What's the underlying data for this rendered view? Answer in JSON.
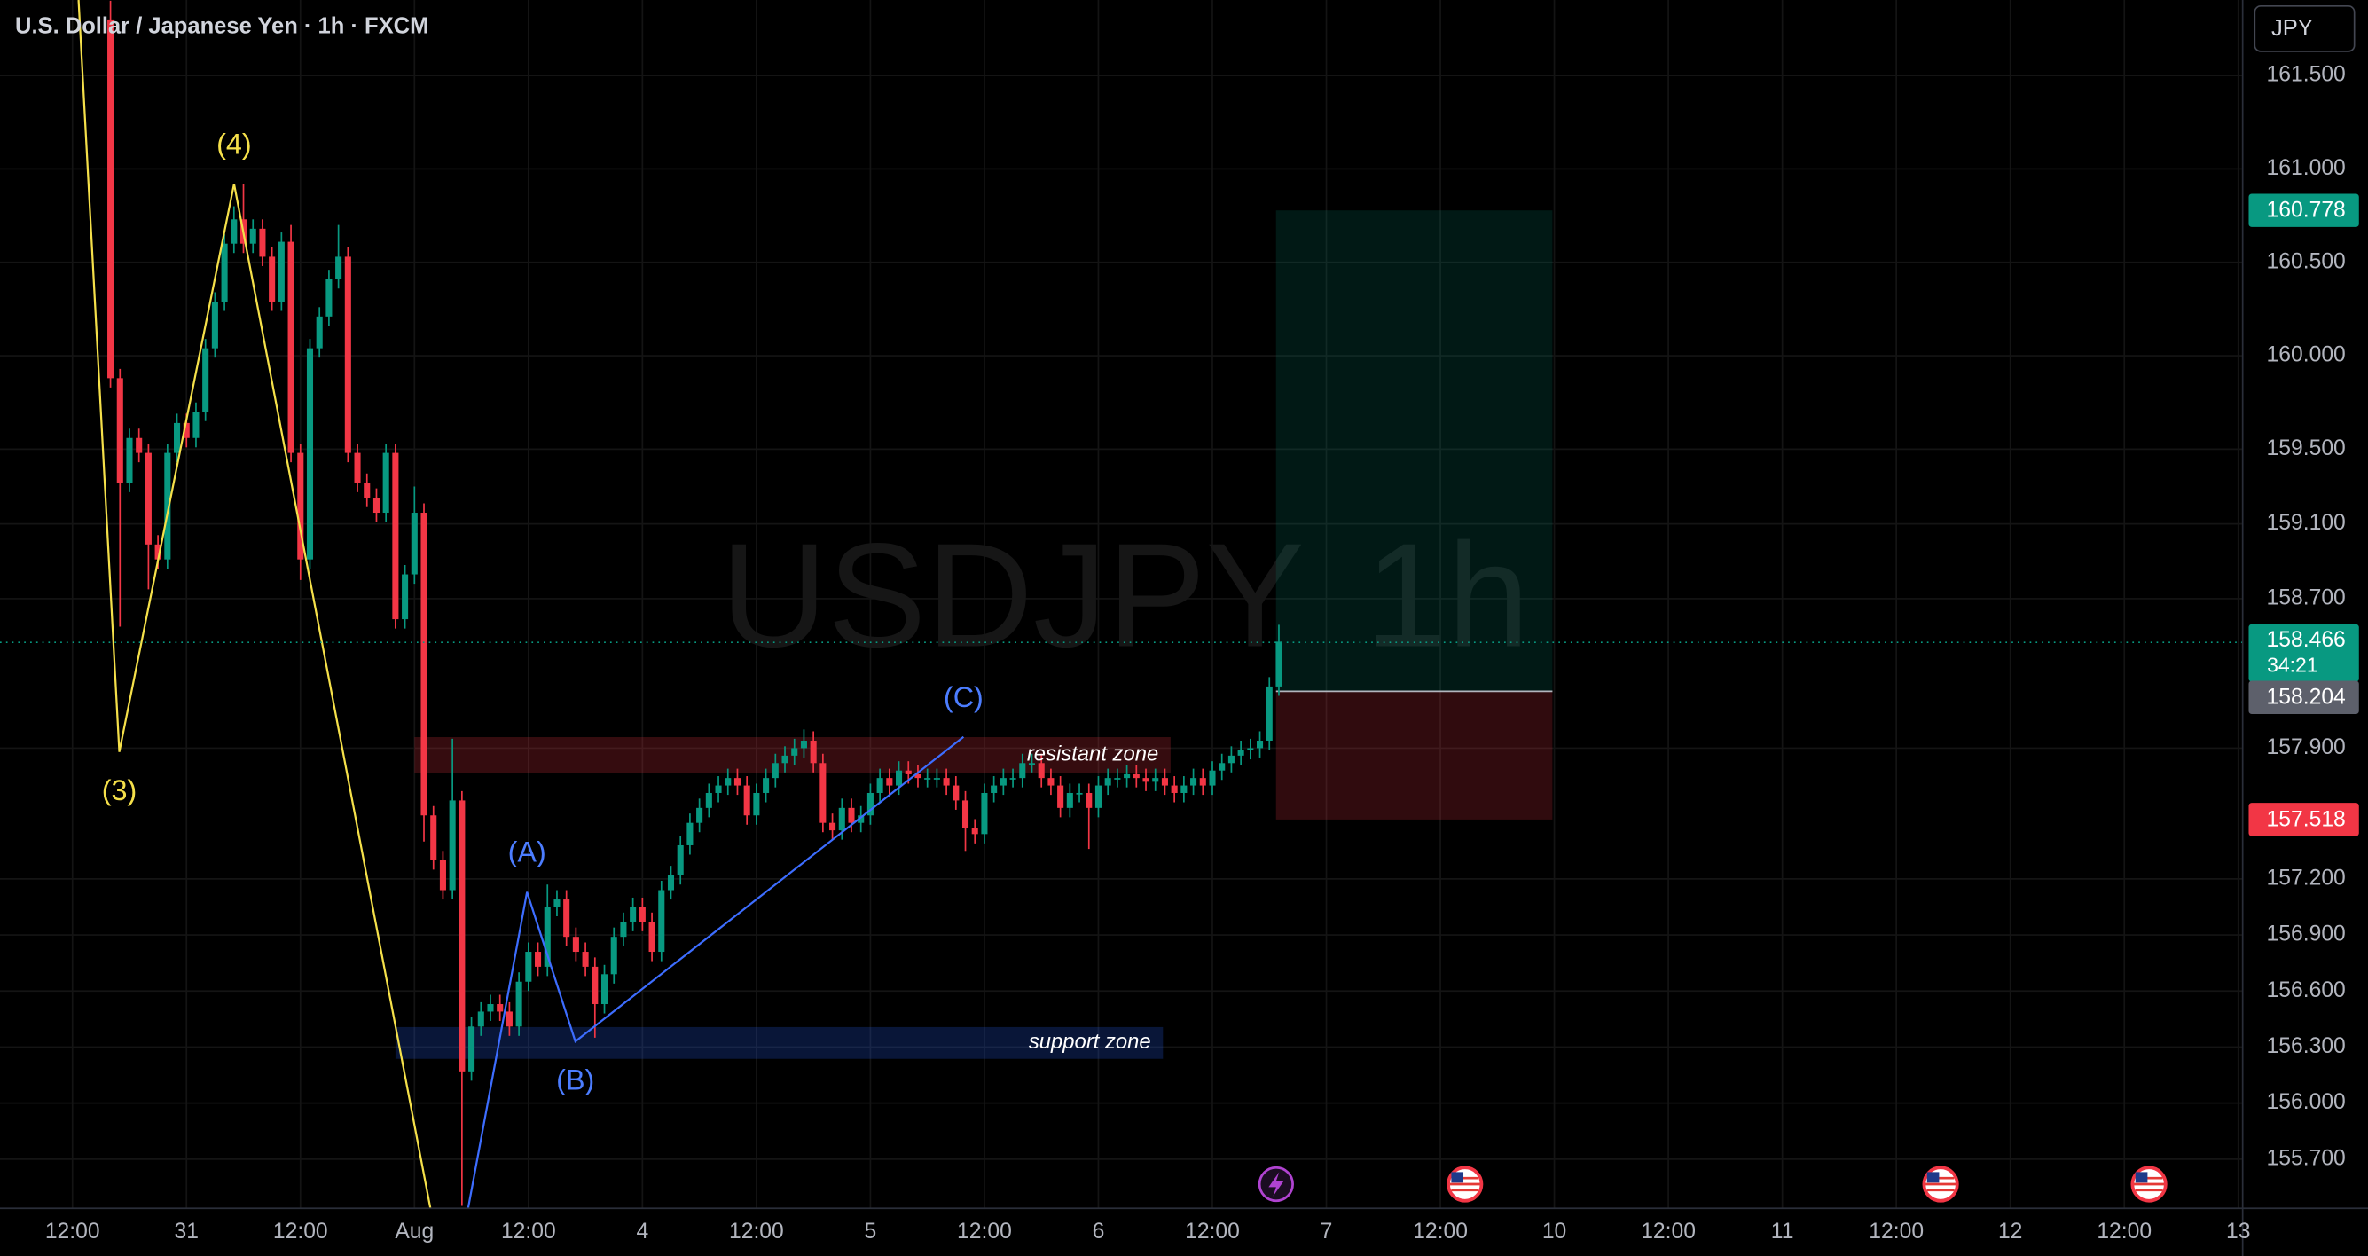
{
  "chart_data": {
    "type": "candlestick",
    "title": "U.S. Dollar / Japanese Yen · 1h · FXCM",
    "currency_button": "JPY",
    "watermark": {
      "symbol": "USDJPY",
      "interval": "1h"
    },
    "up_color": "#089981",
    "down_color": "#f23645",
    "grid": true,
    "xlim": [
      4.37,
      240.46
    ],
    "ylim": [
      155.437,
      161.904
    ],
    "xticks": [
      {
        "value": 12,
        "label": "12:00"
      },
      {
        "value": 24,
        "label": "31"
      },
      {
        "value": 36,
        "label": "12:00"
      },
      {
        "value": 48,
        "label": "Aug"
      },
      {
        "value": 60,
        "label": "12:00"
      },
      {
        "value": 72,
        "label": "4"
      },
      {
        "value": 84,
        "label": "12:00"
      },
      {
        "value": 96,
        "label": "5"
      },
      {
        "value": 108,
        "label": "12:00"
      },
      {
        "value": 120,
        "label": "6"
      },
      {
        "value": 132,
        "label": "12:00"
      },
      {
        "value": 144,
        "label": "7"
      },
      {
        "value": 156,
        "label": "12:00"
      },
      {
        "value": 168,
        "label": "10"
      },
      {
        "value": 180,
        "label": "12:00"
      },
      {
        "value": 192,
        "label": "11"
      },
      {
        "value": 204,
        "label": "12:00"
      },
      {
        "value": 216,
        "label": "12"
      },
      {
        "value": 228,
        "label": "12:00"
      },
      {
        "value": 240,
        "label": "13"
      }
    ],
    "yticks": [
      {
        "value": 161.5,
        "label": "161.500"
      },
      {
        "value": 161.0,
        "label": "161.000"
      },
      {
        "value": 160.5,
        "label": "160.500"
      },
      {
        "value": 160.0,
        "label": "160.000"
      },
      {
        "value": 159.5,
        "label": "159.500"
      },
      {
        "value": 159.1,
        "label": "159.100"
      },
      {
        "value": 158.7,
        "label": "158.700"
      },
      {
        "value": 157.9,
        "label": "157.900"
      },
      {
        "value": 157.2,
        "label": "157.200"
      },
      {
        "value": 156.9,
        "label": "156.900"
      },
      {
        "value": 156.6,
        "label": "156.600"
      },
      {
        "value": 156.3,
        "label": "156.300"
      },
      {
        "value": 156.0,
        "label": "156.000"
      },
      {
        "value": 155.7,
        "label": "155.700"
      }
    ],
    "x": [
      16,
      17,
      18,
      19,
      20,
      21,
      22,
      23,
      24,
      25,
      26,
      27,
      28,
      29,
      30,
      31,
      32,
      33,
      34,
      35,
      36,
      37,
      38,
      39,
      40,
      41,
      42,
      43,
      44,
      45,
      46,
      47,
      48,
      49,
      50,
      51,
      52,
      53,
      54,
      55,
      56,
      57,
      58,
      59,
      60,
      61,
      62,
      63,
      64,
      65,
      66,
      67,
      68,
      69,
      70,
      71,
      72,
      73,
      74,
      75,
      76,
      77,
      78,
      79,
      80,
      81,
      82,
      83,
      84,
      85,
      86,
      87,
      88,
      89,
      90,
      91,
      92,
      93,
      94,
      95,
      96,
      97,
      98,
      99,
      100,
      101,
      102,
      103,
      104,
      105,
      106,
      107,
      108,
      109,
      110,
      111,
      112,
      113,
      114,
      115,
      116,
      117,
      118,
      119,
      120,
      121,
      122,
      123,
      124,
      125,
      126,
      127,
      128,
      129,
      130,
      131,
      132,
      133,
      134,
      135,
      136,
      137,
      138,
      139
    ],
    "open": [
      161.8,
      159.88,
      159.32,
      159.56,
      159.48,
      158.99,
      158.91,
      159.48,
      159.64,
      159.56,
      159.7,
      160.04,
      160.29,
      160.6,
      160.73,
      160.6,
      160.68,
      160.53,
      160.29,
      160.61,
      159.48,
      158.91,
      160.04,
      160.21,
      160.41,
      160.53,
      159.48,
      159.32,
      159.24,
      159.16,
      159.48,
      158.59,
      158.83,
      159.16,
      157.54,
      157.3,
      157.14,
      157.62,
      156.17,
      156.41,
      156.49,
      156.53,
      156.49,
      156.41,
      156.65,
      156.81,
      156.73,
      157.05,
      157.09,
      156.89,
      156.81,
      156.73,
      156.53,
      156.69,
      156.89,
      156.97,
      157.05,
      156.97,
      156.81,
      157.14,
      157.22,
      157.38,
      157.5,
      157.58,
      157.66,
      157.7,
      157.74,
      157.7,
      157.54,
      157.66,
      157.74,
      157.82,
      157.86,
      157.9,
      157.94,
      157.82,
      157.5,
      157.46,
      157.58,
      157.5,
      157.54,
      157.66,
      157.74,
      157.7,
      157.78,
      157.76,
      157.74,
      157.74,
      157.74,
      157.7,
      157.62,
      157.47,
      157.44,
      157.66,
      157.7,
      157.74,
      157.74,
      157.82,
      157.82,
      157.74,
      157.7,
      157.58,
      157.66,
      157.66,
      157.58,
      157.7,
      157.74,
      157.74,
      157.76,
      157.74,
      157.72,
      157.74,
      157.7,
      157.66,
      157.7,
      157.74,
      157.7,
      157.78,
      157.82,
      157.86,
      157.89,
      157.9,
      157.94,
      158.23
    ],
    "high": [
      161.9,
      159.93,
      159.61,
      159.61,
      159.53,
      159.04,
      159.53,
      159.69,
      159.69,
      159.75,
      160.09,
      160.34,
      160.65,
      160.8,
      160.92,
      160.73,
      160.73,
      160.58,
      160.66,
      160.7,
      159.53,
      160.09,
      160.26,
      160.46,
      160.7,
      160.58,
      159.53,
      159.37,
      159.29,
      159.53,
      159.53,
      158.88,
      159.3,
      159.21,
      157.59,
      157.35,
      157.95,
      157.67,
      156.46,
      156.54,
      156.58,
      156.58,
      156.54,
      156.7,
      156.86,
      156.86,
      157.17,
      157.14,
      157.14,
      156.94,
      156.86,
      156.78,
      156.74,
      156.94,
      157.02,
      157.1,
      157.1,
      157.02,
      157.19,
      157.27,
      157.43,
      157.55,
      157.63,
      157.71,
      157.75,
      157.79,
      157.79,
      157.75,
      157.71,
      157.79,
      157.87,
      157.91,
      157.95,
      158.0,
      157.99,
      157.87,
      157.55,
      157.63,
      157.63,
      157.59,
      157.71,
      157.79,
      157.79,
      157.83,
      157.83,
      157.81,
      157.79,
      157.79,
      157.79,
      157.75,
      157.67,
      157.52,
      157.71,
      157.75,
      157.79,
      157.79,
      157.87,
      157.87,
      157.87,
      157.79,
      157.75,
      157.71,
      157.71,
      157.71,
      157.75,
      157.79,
      157.79,
      157.81,
      157.81,
      157.79,
      157.79,
      157.79,
      157.75,
      157.75,
      157.79,
      157.79,
      157.83,
      157.87,
      157.91,
      157.94,
      157.95,
      157.99,
      158.28,
      158.56
    ],
    "low": [
      159.83,
      158.55,
      159.27,
      159.43,
      158.75,
      158.86,
      158.86,
      159.43,
      159.51,
      159.51,
      159.65,
      159.99,
      160.24,
      160.55,
      160.55,
      160.55,
      160.48,
      160.24,
      160.24,
      159.43,
      158.8,
      158.86,
      159.99,
      160.16,
      160.36,
      159.43,
      159.27,
      159.19,
      159.11,
      159.11,
      158.54,
      158.54,
      158.78,
      157.4,
      157.25,
      157.09,
      157.09,
      155.45,
      156.12,
      156.36,
      156.44,
      156.44,
      156.36,
      156.36,
      156.6,
      156.68,
      156.68,
      157.0,
      156.84,
      156.76,
      156.68,
      156.35,
      156.48,
      156.64,
      156.84,
      156.92,
      156.92,
      156.76,
      156.76,
      157.09,
      157.17,
      157.33,
      157.45,
      157.53,
      157.61,
      157.65,
      157.65,
      157.49,
      157.49,
      157.61,
      157.69,
      157.77,
      157.81,
      157.85,
      157.77,
      157.45,
      157.41,
      157.41,
      157.45,
      157.45,
      157.49,
      157.61,
      157.65,
      157.65,
      157.71,
      157.69,
      157.69,
      157.69,
      157.65,
      157.57,
      157.35,
      157.39,
      157.39,
      157.61,
      157.65,
      157.69,
      157.69,
      157.77,
      157.69,
      157.65,
      157.53,
      157.53,
      157.61,
      157.36,
      157.53,
      157.65,
      157.69,
      157.69,
      157.69,
      157.67,
      157.67,
      157.65,
      157.61,
      157.61,
      157.65,
      157.65,
      157.65,
      157.73,
      157.77,
      157.81,
      157.84,
      157.85,
      157.89,
      158.18
    ],
    "close": [
      159.88,
      159.32,
      159.56,
      159.48,
      158.99,
      158.91,
      159.48,
      159.64,
      159.56,
      159.7,
      160.04,
      160.29,
      160.6,
      160.73,
      160.6,
      160.68,
      160.53,
      160.29,
      160.61,
      159.48,
      158.91,
      160.04,
      160.21,
      160.41,
      160.53,
      159.48,
      159.32,
      159.24,
      159.16,
      159.48,
      158.59,
      158.83,
      159.16,
      157.54,
      157.3,
      157.14,
      157.62,
      156.17,
      156.41,
      156.49,
      156.53,
      156.49,
      156.41,
      156.65,
      156.81,
      156.73,
      157.05,
      157.09,
      156.89,
      156.81,
      156.73,
      156.53,
      156.69,
      156.89,
      156.97,
      157.05,
      156.97,
      156.81,
      157.14,
      157.22,
      157.38,
      157.5,
      157.58,
      157.66,
      157.7,
      157.74,
      157.7,
      157.54,
      157.66,
      157.74,
      157.82,
      157.86,
      157.9,
      157.94,
      157.82,
      157.5,
      157.46,
      157.58,
      157.5,
      157.54,
      157.66,
      157.74,
      157.7,
      157.78,
      157.76,
      157.74,
      157.74,
      157.74,
      157.7,
      157.62,
      157.47,
      157.44,
      157.66,
      157.7,
      157.74,
      157.74,
      157.82,
      157.82,
      157.74,
      157.7,
      157.58,
      157.66,
      157.66,
      157.58,
      157.7,
      157.74,
      157.74,
      157.76,
      157.74,
      157.72,
      157.74,
      157.7,
      157.66,
      157.7,
      157.74,
      157.7,
      157.78,
      157.82,
      157.86,
      157.89,
      157.9,
      157.94,
      158.23,
      158.47
    ],
    "last_price": 158.466,
    "countdown": "34:21",
    "position": {
      "x": [
        138.7,
        167.8
      ],
      "entry": 158.204,
      "target": 160.778,
      "stop": 157.518,
      "target_color": "#089981",
      "stop_color": "#f23645",
      "entry_color": "#787b86"
    },
    "zones": [
      {
        "label": "resistant zone",
        "x": [
          48,
          127.6
        ],
        "y": [
          157.765,
          157.959
        ],
        "color": "#f23645"
      },
      {
        "label": "support zone",
        "x": [
          46,
          126.8
        ],
        "y": [
          156.237,
          156.407
        ],
        "color": "#2962ff"
      }
    ],
    "waves": [
      {
        "color": "#f5e04a",
        "points": [
          {
            "x": 12.64,
            "y": 161.904
          },
          {
            "x": 16.93,
            "y": 157.88,
            "label": "(3)",
            "label_pos": "below"
          },
          {
            "x": 29.01,
            "y": 160.92,
            "label": "(4)",
            "label_pos": "above"
          },
          {
            "x": 49.68,
            "y": 155.437
          }
        ]
      },
      {
        "color": "#3d6dff",
        "label_color": "#4c7dff",
        "points": [
          {
            "x": 53.65,
            "y": 155.437
          },
          {
            "x": 59.85,
            "y": 157.13,
            "label": "(A)",
            "label_pos": "above"
          },
          {
            "x": 64.94,
            "y": 156.33,
            "label": "(B)",
            "label_pos": "below"
          },
          {
            "x": 105.8,
            "y": 157.96,
            "label": "(C)",
            "label_pos": "above"
          }
        ]
      }
    ]
  }
}
